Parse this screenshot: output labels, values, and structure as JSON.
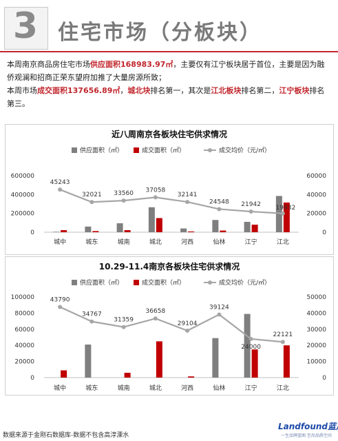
{
  "header": {
    "number": "3",
    "title": "住宅市场（分板块）"
  },
  "summary": {
    "line1": {
      "t1": "本周南京商品房住宅市场",
      "h1": "供应面积168983.97㎡",
      "t2": "，主要仅有江宁板块居于首位，主要是因为融侨观澜和招商正荣东望府加推了大量房源所致；"
    },
    "line2": {
      "t1": "本周市场",
      "h1": "成交面积137656.89㎡",
      "t2": "，",
      "h2": "城北块",
      "t3": "排名第一，其次是",
      "h3": "江北板块",
      "t4": "排名第二，",
      "h4": "江宁板块",
      "t5": "排名第三。"
    }
  },
  "colors": {
    "supply": "#7f7f7f",
    "deal": "#c00000",
    "price": "#a6a6a6",
    "accent": "#c0262c",
    "brand": "#1e4aa8"
  },
  "chart_data": [
    {
      "type": "bar",
      "title": "近八周南京各板块住宅供求情况",
      "categories": [
        "城中",
        "城东",
        "城南",
        "城北",
        "河西",
        "仙林",
        "江宁",
        "江北"
      ],
      "series": [
        {
          "name": "供应面积（㎡）",
          "type": "bar",
          "axis": "left",
          "values": [
            5000,
            60000,
            95000,
            265000,
            40000,
            130000,
            110000,
            385000
          ]
        },
        {
          "name": "成交面积（㎡）",
          "type": "bar",
          "axis": "left",
          "values": [
            22000,
            12000,
            22000,
            150000,
            8000,
            18000,
            80000,
            315000
          ]
        },
        {
          "name": "成交均价（元/㎡）",
          "type": "line",
          "axis": "right",
          "values": [
            45243,
            32021,
            33560,
            37058,
            32141,
            24548,
            21942,
            19932
          ]
        }
      ],
      "data_labels": [
        "45243",
        "32021",
        "33560",
        "37058",
        "32141",
        "24548",
        "21942",
        "19932"
      ],
      "left_axis": {
        "min": 0,
        "max": 600000,
        "ticks": [
          "0",
          "200000",
          "400000",
          "600000"
        ]
      },
      "right_axis": {
        "min": 0,
        "max": 60000,
        "ticks": [
          "0",
          "20000",
          "40000",
          "60000"
        ]
      },
      "legend": "top",
      "grid": false
    },
    {
      "type": "bar",
      "title": "10.29-11.4南京各板块住宅供求情况",
      "categories": [
        "城中",
        "城东",
        "城南",
        "城北",
        "河西",
        "仙林",
        "江宁",
        "江北"
      ],
      "series": [
        {
          "name": "供应面积（㎡）",
          "type": "bar",
          "axis": "left",
          "values": [
            0,
            41000,
            0,
            0,
            0,
            49000,
            79000,
            0
          ]
        },
        {
          "name": "成交面积（㎡）",
          "type": "bar",
          "axis": "left",
          "values": [
            9000,
            0,
            6000,
            45000,
            1500,
            0,
            35000,
            40000
          ]
        },
        {
          "name": "成交均价（元/㎡）",
          "type": "line",
          "axis": "right",
          "values": [
            43790,
            34767,
            31359,
            36658,
            29104,
            39124,
            24000,
            22121
          ]
        }
      ],
      "data_labels": [
        "43790",
        "34767",
        "31359",
        "36658",
        "29104",
        "39124",
        "24000",
        "22121"
      ],
      "left_axis": {
        "min": 0,
        "max": 100000,
        "ticks": [
          "0",
          "20000",
          "40000",
          "60000",
          "80000",
          "100000"
        ]
      },
      "right_axis": {
        "min": 0,
        "max": 50000,
        "ticks": [
          "0",
          "10000",
          "20000",
          "30000",
          "40000",
          "50000"
        ]
      },
      "legend": "top",
      "grid": false
    }
  ],
  "footer": {
    "source": "数据来源于金刚石数据库-数据不包含高淳溧水",
    "logo": "Landfound蓝风",
    "logo_sub": "一生品牌蓝图  至尚品质空间"
  }
}
